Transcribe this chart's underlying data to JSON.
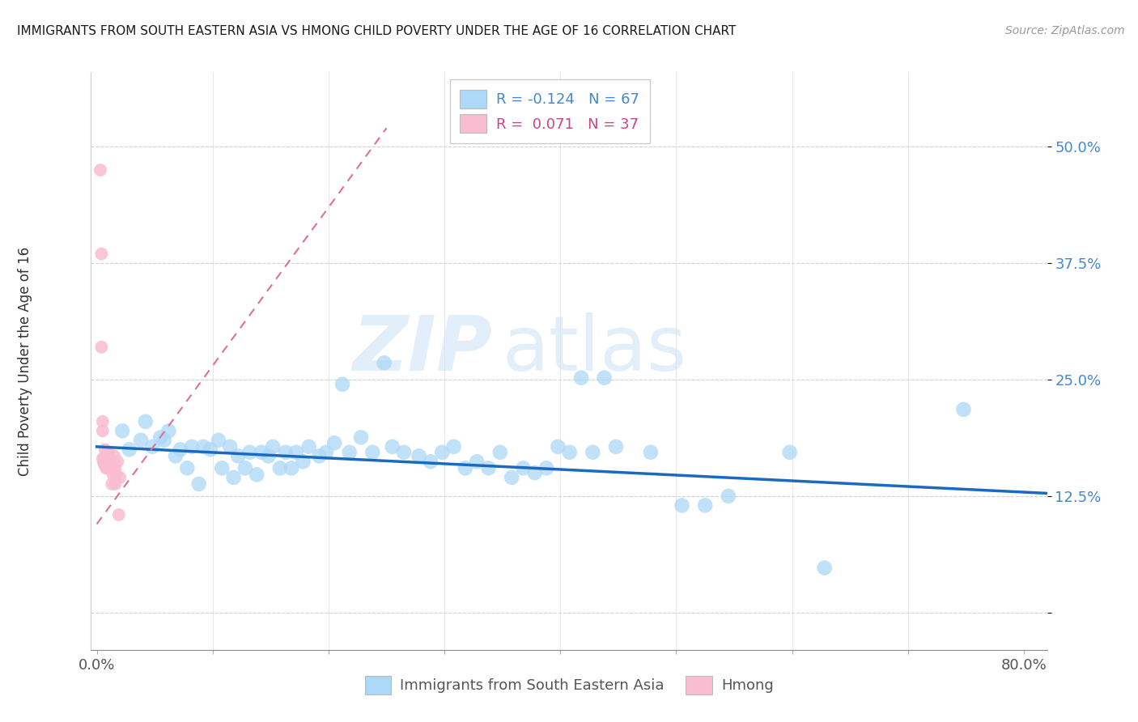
{
  "title": "IMMIGRANTS FROM SOUTH EASTERN ASIA VS HMONG CHILD POVERTY UNDER THE AGE OF 16 CORRELATION CHART",
  "source": "Source: ZipAtlas.com",
  "ylabel": "Child Poverty Under the Age of 16",
  "xlim": [
    -0.005,
    0.82
  ],
  "ylim": [
    -0.04,
    0.58
  ],
  "x_ticks": [
    0.0,
    0.1,
    0.2,
    0.3,
    0.4,
    0.5,
    0.6,
    0.7,
    0.8
  ],
  "x_tick_labels": [
    "0.0%",
    "",
    "",
    "",
    "",
    "",
    "",
    "",
    "80.0%"
  ],
  "y_ticks": [
    0.0,
    0.125,
    0.25,
    0.375,
    0.5
  ],
  "y_tick_labels": [
    "",
    "12.5%",
    "25.0%",
    "37.5%",
    "50.0%"
  ],
  "legend_r_blue": "-0.124",
  "legend_n_blue": "67",
  "legend_r_pink": "0.071",
  "legend_n_pink": "37",
  "blue_color": "#add8f7",
  "pink_color": "#f9bcd0",
  "trend_blue_color": "#1a6bbf",
  "trend_pink_color": "#e07090",
  "watermark_zip": "ZIP",
  "watermark_atlas": "atlas",
  "blue_scatter_x": [
    0.022,
    0.028,
    0.038,
    0.042,
    0.048,
    0.055,
    0.058,
    0.062,
    0.068,
    0.072,
    0.078,
    0.082,
    0.088,
    0.092,
    0.098,
    0.105,
    0.108,
    0.115,
    0.118,
    0.122,
    0.128,
    0.132,
    0.138,
    0.142,
    0.148,
    0.152,
    0.158,
    0.163,
    0.168,
    0.172,
    0.178,
    0.183,
    0.192,
    0.198,
    0.205,
    0.212,
    0.218,
    0.228,
    0.238,
    0.248,
    0.255,
    0.265,
    0.278,
    0.288,
    0.298,
    0.308,
    0.318,
    0.328,
    0.338,
    0.348,
    0.358,
    0.368,
    0.378,
    0.388,
    0.398,
    0.408,
    0.418,
    0.428,
    0.438,
    0.448,
    0.478,
    0.505,
    0.525,
    0.545,
    0.598,
    0.628,
    0.748
  ],
  "blue_scatter_y": [
    0.195,
    0.175,
    0.185,
    0.205,
    0.178,
    0.188,
    0.185,
    0.195,
    0.168,
    0.175,
    0.155,
    0.178,
    0.138,
    0.178,
    0.175,
    0.185,
    0.155,
    0.178,
    0.145,
    0.168,
    0.155,
    0.172,
    0.148,
    0.172,
    0.168,
    0.178,
    0.155,
    0.172,
    0.155,
    0.172,
    0.162,
    0.178,
    0.168,
    0.172,
    0.182,
    0.245,
    0.172,
    0.188,
    0.172,
    0.268,
    0.178,
    0.172,
    0.168,
    0.162,
    0.172,
    0.178,
    0.155,
    0.162,
    0.155,
    0.172,
    0.145,
    0.155,
    0.15,
    0.155,
    0.178,
    0.172,
    0.252,
    0.172,
    0.252,
    0.178,
    0.172,
    0.115,
    0.115,
    0.125,
    0.172,
    0.048,
    0.218
  ],
  "pink_scatter_x": [
    0.003,
    0.004,
    0.004,
    0.005,
    0.005,
    0.005,
    0.006,
    0.006,
    0.007,
    0.007,
    0.007,
    0.008,
    0.008,
    0.009,
    0.009,
    0.009,
    0.009,
    0.01,
    0.01,
    0.01,
    0.01,
    0.011,
    0.011,
    0.012,
    0.012,
    0.013,
    0.013,
    0.013,
    0.014,
    0.015,
    0.015,
    0.016,
    0.016,
    0.017,
    0.018,
    0.019,
    0.02
  ],
  "pink_scatter_y": [
    0.475,
    0.385,
    0.285,
    0.205,
    0.195,
    0.165,
    0.16,
    0.165,
    0.158,
    0.165,
    0.175,
    0.155,
    0.165,
    0.155,
    0.16,
    0.165,
    0.172,
    0.158,
    0.162,
    0.168,
    0.172,
    0.158,
    0.165,
    0.155,
    0.165,
    0.158,
    0.138,
    0.155,
    0.148,
    0.16,
    0.168,
    0.155,
    0.138,
    0.148,
    0.162,
    0.105,
    0.145
  ],
  "blue_dot_size": 180,
  "pink_dot_size": 130,
  "trend_blue_x0": 0.0,
  "trend_blue_x1": 0.82,
  "trend_blue_y0": 0.178,
  "trend_blue_y1": 0.128,
  "trend_pink_x0": 0.0,
  "trend_pink_x1": 0.25,
  "trend_pink_y0": 0.095,
  "trend_pink_y1": 0.52
}
